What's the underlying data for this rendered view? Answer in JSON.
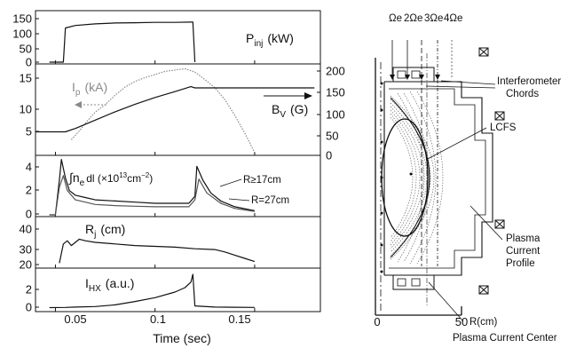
{
  "figure": {
    "x_axis_label": "Time (sec)",
    "x_ticks": [
      "0.05",
      "0.1",
      "0.15"
    ]
  },
  "chart_data": [
    {
      "type": "line",
      "label": "P",
      "label_sub": "inj",
      "unit": "(kW)",
      "yticks": [
        "150",
        "100",
        "50",
        "0"
      ],
      "ylim": [
        0,
        160
      ],
      "series": [
        {
          "x": [
            0.047,
            0.054,
            0.055,
            0.06,
            0.07,
            0.08,
            0.09,
            0.1,
            0.11,
            0.118,
            0.119,
            0.12
          ],
          "y": [
            0,
            0,
            110,
            118,
            123,
            126,
            127,
            128,
            128,
            129,
            129,
            0
          ]
        }
      ]
    },
    {
      "type": "line",
      "label": "I",
      "label_sub": "p",
      "unit": "(kA)",
      "label2": "B",
      "label2_sub": "V",
      "unit2": "(G)",
      "yticks": [
        "15",
        "10",
        "5"
      ],
      "ylim": [
        2,
        16
      ],
      "yticks_right": [
        "200",
        "150",
        "100",
        "50",
        "0"
      ],
      "ylim_right": [
        0,
        210
      ],
      "series": [
        {
          "axis": "left",
          "style": "dotted",
          "x": [
            0.058,
            0.062,
            0.066,
            0.07,
            0.075,
            0.08,
            0.085,
            0.09,
            0.095,
            0.1,
            0.105,
            0.11,
            0.115,
            0.12,
            0.125,
            0.13,
            0.135,
            0.14,
            0.145,
            0.15
          ],
          "y": [
            4.2,
            5.6,
            7.2,
            8.6,
            9.8,
            11.3,
            12.6,
            13.5,
            14.1,
            14.6,
            15.1,
            15.3,
            15.5,
            15.0,
            13.8,
            12.5,
            10.6,
            8.1,
            5.3,
            2.2
          ]
        },
        {
          "axis": "right",
          "x": [
            0.04,
            0.055,
            0.06,
            0.07,
            0.08,
            0.09,
            0.1,
            0.11,
            0.118,
            0.12,
            0.13,
            0.15,
            0.18
          ],
          "y": [
            52,
            52,
            60,
            80,
            100,
            118,
            134,
            148,
            160,
            157,
            157,
            157,
            157
          ]
        }
      ]
    },
    {
      "type": "line",
      "label": "∫n",
      "label_sub": "e",
      "unit": "dl (×10",
      "unit_sup": "13",
      "unit_end": "cm",
      "unit_end_sup": "−2",
      "unit_close": ")",
      "yticks": [
        "4",
        "2",
        "0"
      ],
      "ylim": [
        0,
        5
      ],
      "annotations": [
        "R≥17cm",
        "R=27cm"
      ],
      "series": [
        {
          "name": "R≥17cm",
          "x": [
            0.047,
            0.05,
            0.052,
            0.053,
            0.055,
            0.057,
            0.06,
            0.065,
            0.07,
            0.08,
            0.09,
            0.1,
            0.11,
            0.117,
            0.12,
            0.121,
            0.124,
            0.128,
            0.133,
            0.14,
            0.15
          ],
          "y": [
            0,
            0,
            3.0,
            4.8,
            3.2,
            2.1,
            1.7,
            1.5,
            1.3,
            1.2,
            1.1,
            1.0,
            1.0,
            1.0,
            1.6,
            4.2,
            3.0,
            1.9,
            1.2,
            0.7,
            0.35
          ]
        },
        {
          "name": "R=27cm",
          "x": [
            0.047,
            0.05,
            0.052,
            0.054,
            0.056,
            0.06,
            0.065,
            0.07,
            0.08,
            0.09,
            0.1,
            0.11,
            0.117,
            0.12,
            0.122,
            0.126,
            0.133,
            0.14,
            0.15
          ],
          "y": [
            0,
            0,
            2.4,
            3.4,
            2.1,
            1.3,
            1.1,
            0.9,
            0.8,
            0.75,
            0.7,
            0.7,
            0.7,
            1.3,
            3.1,
            1.9,
            1.0,
            0.55,
            0.3
          ]
        }
      ]
    },
    {
      "type": "line",
      "label": "R",
      "label_sub": "j",
      "unit": "(cm)",
      "yticks": [
        "40",
        "30",
        "20"
      ],
      "ylim": [
        15,
        45
      ],
      "series": [
        {
          "x": [
            0.052,
            0.054,
            0.056,
            0.058,
            0.06,
            0.062,
            0.065,
            0.07,
            0.08,
            0.09,
            0.1,
            0.11,
            0.12,
            0.13,
            0.135,
            0.14,
            0.145,
            0.15
          ],
          "y": [
            17,
            29,
            31,
            28,
            30,
            32,
            31,
            30,
            29,
            28,
            27.5,
            27,
            26,
            25.5,
            24,
            22,
            20,
            18
          ]
        }
      ]
    },
    {
      "type": "line",
      "label": "I",
      "label_sub": "HX",
      "unit": "(a.u.)",
      "yticks": [
        "2",
        "0"
      ],
      "ylim": [
        -0.2,
        3.4
      ],
      "series": [
        {
          "x": [
            0.047,
            0.055,
            0.06,
            0.07,
            0.08,
            0.09,
            0.1,
            0.11,
            0.115,
            0.118,
            0.119,
            0.12,
            0.13,
            0.14,
            0.15
          ],
          "y": [
            0,
            0.02,
            0.05,
            0.1,
            0.25,
            0.55,
            0.9,
            1.4,
            1.8,
            2.3,
            3.0,
            0.15,
            0.05,
            0.03,
            0.02
          ]
        }
      ]
    }
  ],
  "diagram": {
    "harmonics": [
      "Ωe",
      "2Ωe",
      "3Ωe",
      "4Ωe"
    ],
    "labels": {
      "interferometer": [
        "Interferometer",
        "Chords"
      ],
      "lcfs": "LCFS",
      "profile": [
        "Plasma",
        "Current",
        "Profile"
      ],
      "center": "Plasma Current Center"
    },
    "r_axis": {
      "ticks": [
        "0",
        "50"
      ],
      "unit": "R(cm)"
    }
  }
}
